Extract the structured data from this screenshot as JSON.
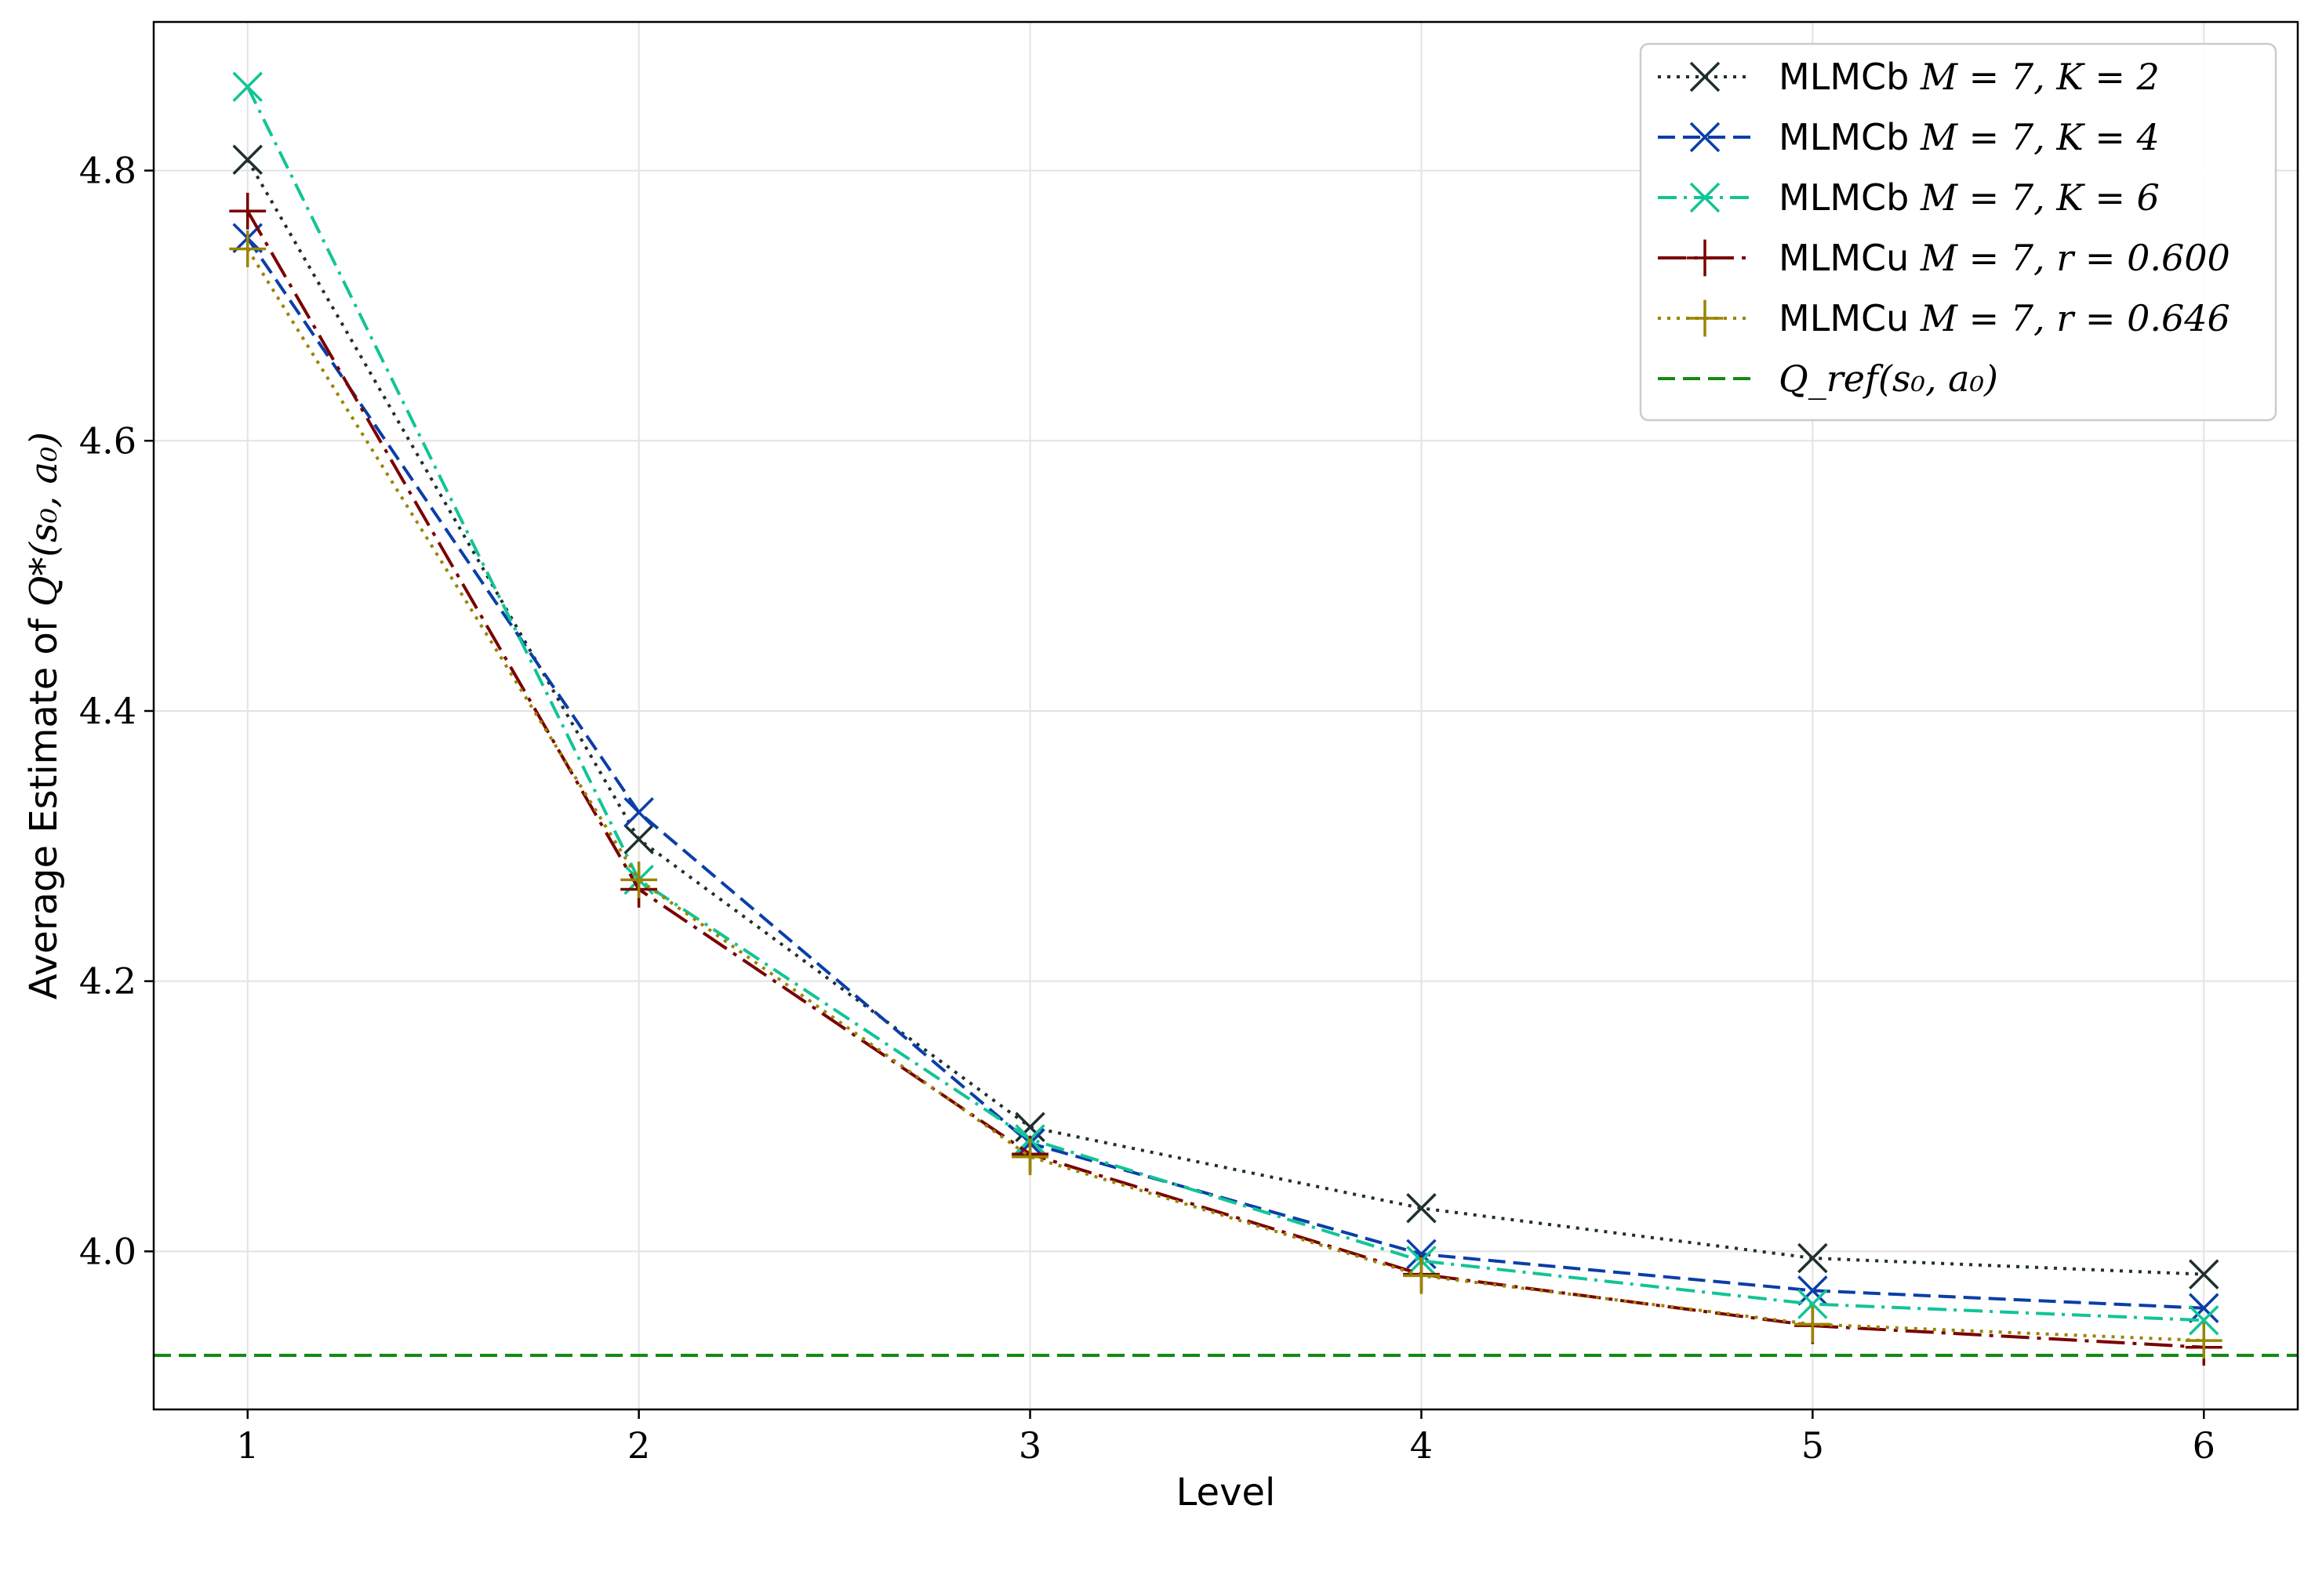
{
  "chart_data": {
    "type": "line",
    "title": "",
    "xlabel": "Level",
    "ylabel_prefix": "Average Estimate of ",
    "ylabel_math": "Q*(s₀, a₀)",
    "x": [
      1,
      2,
      3,
      4,
      5,
      6
    ],
    "xticks": [
      "1",
      "2",
      "3",
      "4",
      "5",
      "6"
    ],
    "xlim": [
      0.76,
      6.24
    ],
    "ylim": [
      3.883,
      4.91
    ],
    "yticks": [
      4.0,
      4.2,
      4.4,
      4.6,
      4.8
    ],
    "yticklabels": [
      "4.0",
      "4.2",
      "4.4",
      "4.6",
      "4.8"
    ],
    "grid": true,
    "legend_position": "top-right",
    "series": [
      {
        "name_text": "MLMCb",
        "name_math": "M = 7, K = 2",
        "color": "#1f2f2f",
        "dash": "dotted",
        "marker": "x",
        "values": [
          4.808,
          4.305,
          4.092,
          4.032,
          3.995,
          3.983
        ]
      },
      {
        "name_text": "MLMCb",
        "name_math": "M = 7, K = 4",
        "color": "#0a3ea8",
        "dash": "dashed",
        "marker": "x",
        "values": [
          4.75,
          4.325,
          4.08,
          3.998,
          3.971,
          3.958
        ]
      },
      {
        "name_text": "MLMCb",
        "name_math": "M = 7, K = 6",
        "color": "#12c496",
        "dash": "dashdot",
        "marker": "x",
        "values": [
          4.862,
          4.275,
          4.083,
          3.993,
          3.961,
          3.949
        ]
      },
      {
        "name_text": "MLMCu",
        "name_math": "M = 7, r = 0.600",
        "color": "#7a0000",
        "dash": "longdashdot",
        "marker": "+",
        "values": [
          4.77,
          4.268,
          4.072,
          3.983,
          3.945,
          3.929
        ]
      },
      {
        "name_text": "MLMCu",
        "name_math": "M = 7, r = 0.646",
        "color": "#9a8400",
        "dash": "dotted",
        "marker": "+",
        "values": [
          4.742,
          4.275,
          4.07,
          3.982,
          3.946,
          3.934
        ]
      }
    ],
    "reference": {
      "name_math": "Q_ref(s₀, a₀)",
      "value": 3.923,
      "color": "#138a13",
      "dash": "dashed"
    }
  }
}
